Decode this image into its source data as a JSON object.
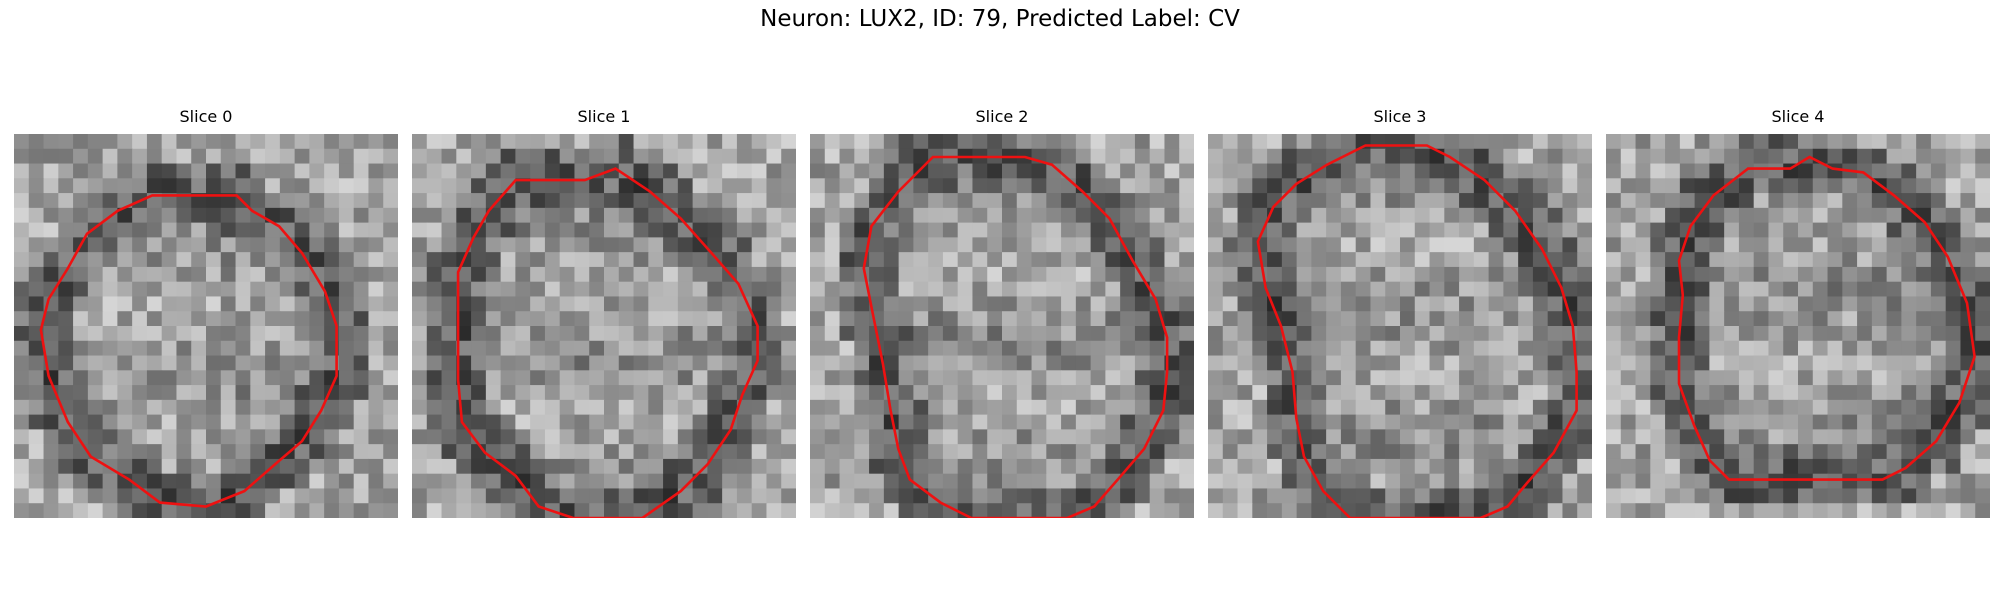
{
  "figure": {
    "title": "Neuron: LUX2, ID: 79, Predicted Label: CV",
    "panels": [
      {
        "title": "Slice 0"
      },
      {
        "title": "Slice 1"
      },
      {
        "title": "Slice 2"
      },
      {
        "title": "Slice 3"
      },
      {
        "title": "Slice 4"
      }
    ],
    "colormap": "gray",
    "contour_color": "#ee1111"
  }
}
